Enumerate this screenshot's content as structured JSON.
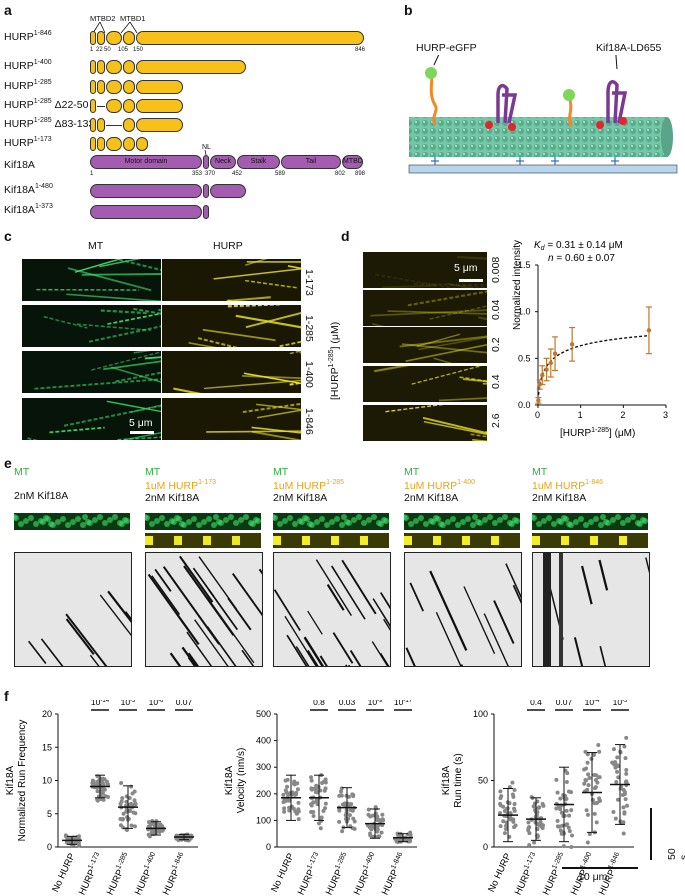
{
  "panel_labels": {
    "a": "a",
    "b": "b",
    "c": "c",
    "d": "d",
    "e": "e",
    "f": "f"
  },
  "panel_a": {
    "constructs": [
      {
        "base": "HURP",
        "sup": "1-846",
        "suffix": ""
      },
      {
        "base": "HURP",
        "sup": "1-400",
        "suffix": ""
      },
      {
        "base": "HURP",
        "sup": "1-285",
        "suffix": ""
      },
      {
        "base": "HURP",
        "sup": "1-285",
        "suffix": " Δ22-50"
      },
      {
        "base": "HURP",
        "sup": "1-285",
        "suffix": " Δ83-133"
      },
      {
        "base": "HURP",
        "sup": "1-173",
        "suffix": ""
      }
    ],
    "hurp_ticks": [
      "1",
      "22",
      "50",
      "105",
      "150",
      "846"
    ],
    "domains_top": [
      "MTBD2",
      "MTBD1"
    ],
    "kif_name": "Kif18A",
    "kif_domains": [
      "Motor domain",
      "Neck",
      "Stalk",
      "Tail",
      "MTBD"
    ],
    "nl_label": "NL",
    "kif_ticks": [
      "1",
      "353",
      "370",
      "452",
      "589",
      "802",
      "898"
    ],
    "kif_constructs": [
      {
        "base": "Kif18A",
        "sup": "1-480"
      },
      {
        "base": "Kif18A",
        "sup": "1-373"
      }
    ],
    "colors": {
      "hurp": "#f8c11a",
      "kif": "#a45cb0"
    }
  },
  "panel_b": {
    "label_left": "HURP-eGFP",
    "label_right": "Kif18A-LD655"
  },
  "panel_c": {
    "col_mt": "MT",
    "col_hurp": "HURP",
    "rows": [
      "1-173",
      "1-285",
      "1-400",
      "1-846"
    ],
    "scale": "5 μm"
  },
  "panel_d": {
    "concentrations": [
      "0.008",
      "0.04",
      "0.2",
      "0.4",
      "2.6"
    ],
    "ylabel_base": "[HURP",
    "ylabel_sup": "1-285",
    "ylabel_tail": "] (μM)",
    "scale": "5 μm",
    "kd_text": "K",
    "kd_sub": "d",
    "kd_value": " = 0.31 ± 0.14 μM",
    "n_text": "n",
    "n_value": " = 0.60 ± 0.07",
    "chart_ylabel": "Normalized intensity",
    "chart_xlabel_base": "[HURP",
    "chart_xlabel_sup": "1-285",
    "chart_xlabel_tail": "] (μM)"
  },
  "panel_e": {
    "conditions": [
      {
        "mt": "MT",
        "hurp": "",
        "hurp_sup": "",
        "kif": "2nM Kif18A"
      },
      {
        "mt": "MT",
        "hurp": "1uM HURP",
        "hurp_sup": "1-173",
        "kif": "2nM Kif18A"
      },
      {
        "mt": "MT",
        "hurp": "1uM HURP",
        "hurp_sup": "1-285",
        "kif": "2nM Kif18A"
      },
      {
        "mt": "MT",
        "hurp": "1uM HURP",
        "hurp_sup": "1-400",
        "kif": "2nM Kif18A"
      },
      {
        "mt": "MT",
        "hurp": "1uM HURP",
        "hurp_sup": "1-846",
        "kif": "2nM Kif18A"
      }
    ],
    "scale_time": "50 s",
    "scale_dist": "10 μm"
  },
  "panel_f": {
    "categories": [
      "No HURP",
      "HURP",
      "HURP",
      "HURP",
      "HURP"
    ],
    "category_sups": [
      "",
      "1-173",
      "1-285",
      "1-400",
      "1-846"
    ],
    "charts": [
      {
        "ylabel_top": "Kif18A",
        "ylabel": "Normalized Run Frequency",
        "ylim": [
          0,
          20
        ],
        "yticks": [
          "0",
          "5",
          "10",
          "15",
          "20"
        ],
        "pvalues": [
          "10",
          "10",
          "10",
          "0.07"
        ],
        "pvalue_exps": [
          "-14",
          "-5",
          "-6",
          ""
        ],
        "means": [
          1.0,
          9.1,
          6.0,
          2.8,
          1.5
        ],
        "sd": [
          0.6,
          1.7,
          3.2,
          1.0,
          0.4
        ]
      },
      {
        "ylabel_top": "Kif18A",
        "ylabel": "Velocity (nm/s)",
        "ylim": [
          0,
          500
        ],
        "yticks": [
          "0",
          "100",
          "200",
          "300",
          "400",
          "500"
        ],
        "pvalues": [
          "0.8",
          "0.03",
          "10",
          "10"
        ],
        "pvalue_exps": [
          "",
          "",
          "-9",
          "-17"
        ],
        "means": [
          185,
          185,
          148,
          88,
          35
        ],
        "sd": [
          85,
          85,
          75,
          55,
          15
        ]
      },
      {
        "ylabel_top": "Kif18A",
        "ylabel": "Run time (s)",
        "ylim": [
          0,
          100
        ],
        "yticks": [
          "0",
          "50",
          "100"
        ],
        "pvalues": [
          "0.4",
          "0.07",
          "10",
          "10"
        ],
        "pvalue_exps": [
          "",
          "",
          "-4",
          "-5"
        ],
        "means": [
          24,
          21,
          32,
          41,
          47
        ],
        "sd": [
          20,
          16,
          28,
          30,
          30
        ]
      }
    ]
  },
  "chart_data": {
    "type": "scatter",
    "title": "",
    "xlabel": "[HURP1-285] (μM)",
    "ylabel": "Normalized intensity",
    "xlim": [
      0,
      3
    ],
    "ylim": [
      0,
      1.5
    ],
    "xticks": [
      "0",
      "1",
      "2",
      "3"
    ],
    "yticks": [
      "0.0",
      "0.5",
      "1.0",
      "1.5"
    ],
    "x": [
      0.008,
      0.04,
      0.1,
      0.2,
      0.3,
      0.4,
      0.8,
      2.6
    ],
    "y": [
      0.05,
      0.22,
      0.32,
      0.38,
      0.45,
      0.55,
      0.65,
      0.8
    ],
    "err": [
      0.03,
      0.05,
      0.1,
      0.12,
      0.15,
      0.18,
      0.18,
      0.25
    ],
    "colors": {
      "points": "#c0772a",
      "fit": "#111111"
    }
  }
}
